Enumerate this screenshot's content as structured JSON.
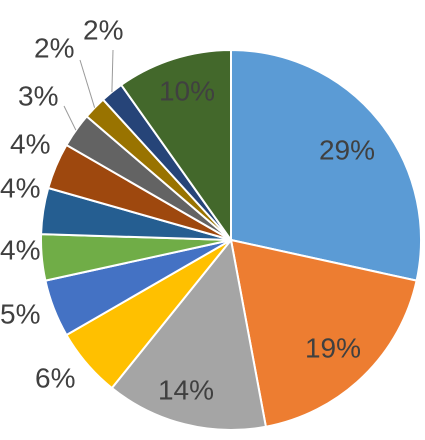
{
  "chart_data": {
    "type": "pie",
    "slices": [
      {
        "label": "29%",
        "value": 29,
        "color": "#5B9BD5"
      },
      {
        "label": "19%",
        "value": 19,
        "color": "#ED7D31"
      },
      {
        "label": "14%",
        "value": 14,
        "color": "#A5A5A5"
      },
      {
        "label": "6%",
        "value": 6,
        "color": "#FFC000"
      },
      {
        "label": "5%",
        "value": 5,
        "color": "#4472C4"
      },
      {
        "label": "4%",
        "value": 4,
        "color": "#70AD47"
      },
      {
        "label": "4%",
        "value": 4,
        "color": "#255E91"
      },
      {
        "label": "4%",
        "value": 4,
        "color": "#9E480E"
      },
      {
        "label": "3%",
        "value": 3,
        "color": "#636363"
      },
      {
        "label": "2%",
        "value": 2,
        "color": "#997300"
      },
      {
        "label": "2%",
        "value": 2,
        "color": "#264478"
      },
      {
        "label": "10%",
        "value": 10,
        "color": "#43682B"
      }
    ],
    "start_angle_deg": 0,
    "direction": "clockwise",
    "legend": "none"
  }
}
